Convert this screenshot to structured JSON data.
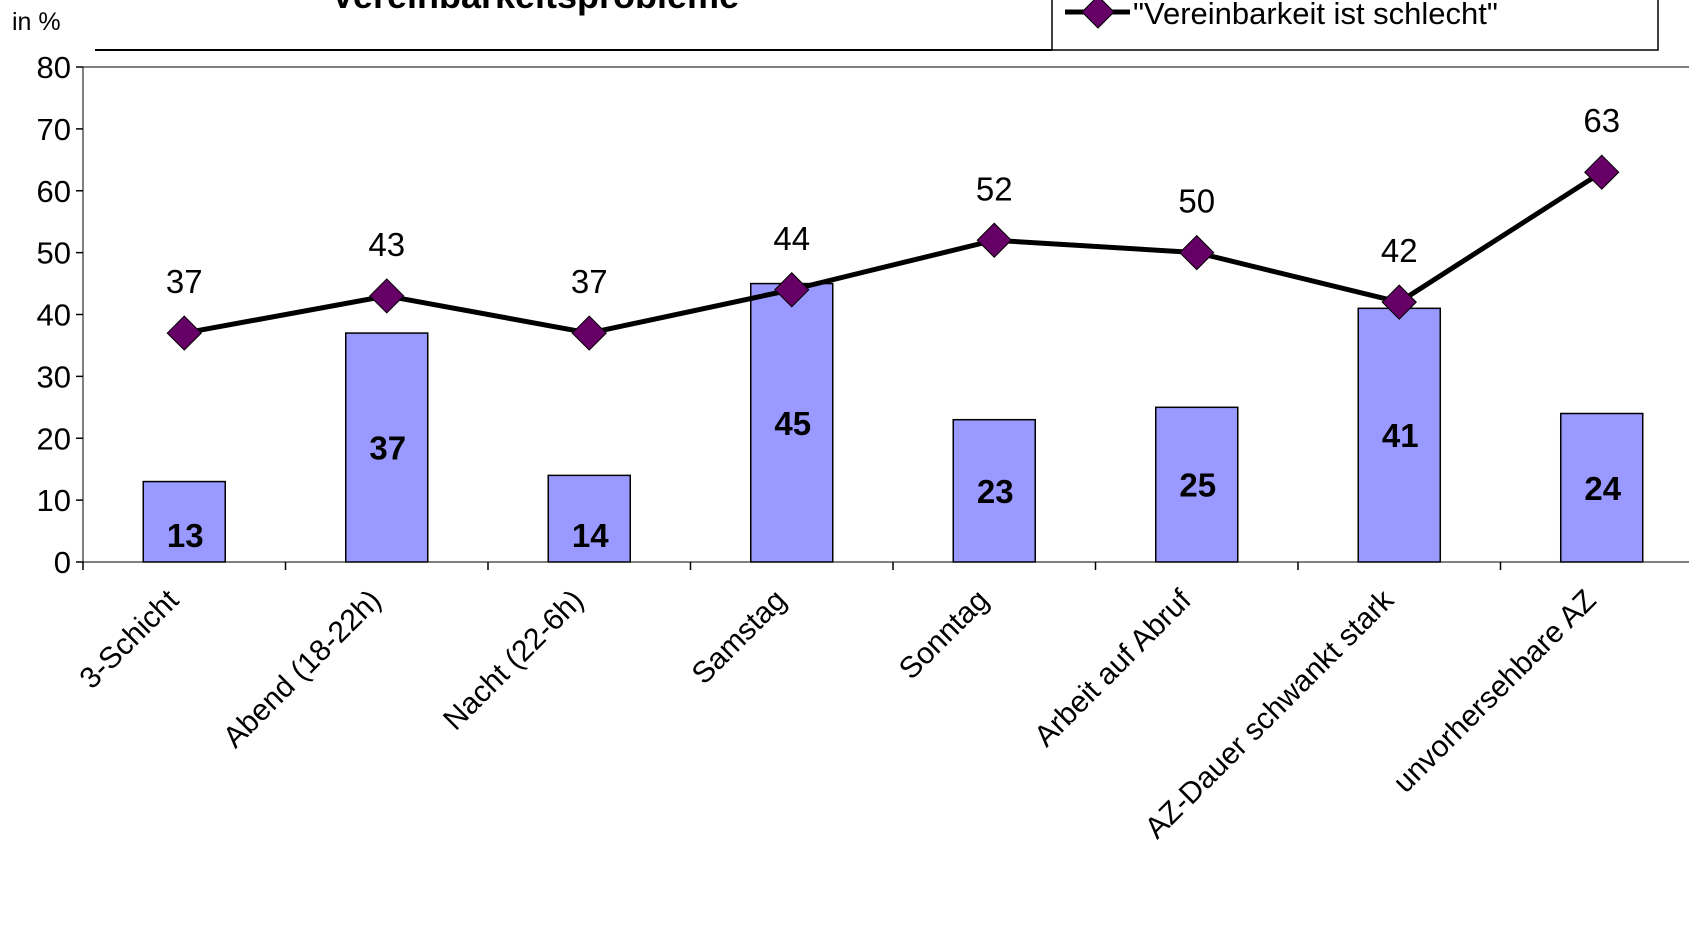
{
  "chart_data": {
    "type": "bar",
    "title": "Vereinbarkeitsprobleme",
    "ylabel": "in %",
    "ylim": [
      0,
      80
    ],
    "yticks": [
      0,
      10,
      20,
      30,
      40,
      50,
      60,
      70,
      80
    ],
    "categories": [
      "3-Schicht",
      "Abend (18-22h)",
      "Nacht (22-6h)",
      "Samstag",
      "Sonntag",
      "Arbeit auf Abruf",
      "AZ-Dauer schwankt stark",
      "unvorhersehbare AZ"
    ],
    "series": [
      {
        "type": "bar",
        "values": [
          13,
          37,
          14,
          45,
          23,
          25,
          41,
          24
        ]
      },
      {
        "type": "line",
        "name": "\"Vereinbarkeit ist schlecht\"",
        "values": [
          37,
          43,
          37,
          44,
          52,
          50,
          42,
          63
        ]
      }
    ],
    "legend_position": "top-right",
    "colors": {
      "bar": "#9999ff",
      "line": "#000000",
      "marker": "#660066"
    }
  }
}
